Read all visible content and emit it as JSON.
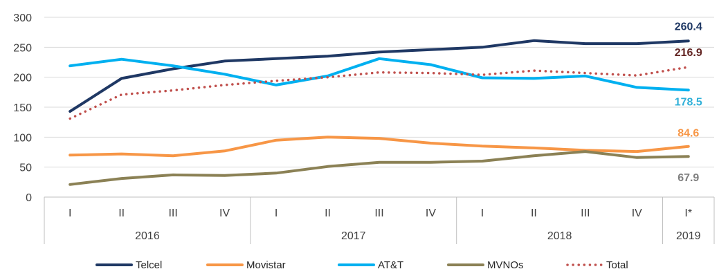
{
  "chart_data": {
    "type": "line",
    "categories": [
      "I",
      "II",
      "III",
      "IV",
      "I",
      "II",
      "III",
      "IV",
      "I",
      "II",
      "III",
      "IV",
      "I*"
    ],
    "groups": [
      {
        "label": "2016",
        "count": 4
      },
      {
        "label": "2017",
        "count": 4
      },
      {
        "label": "2018",
        "count": 4
      },
      {
        "label": "2019",
        "count": 1
      }
    ],
    "ylim": [
      0,
      300
    ],
    "yticks": [
      0,
      50,
      100,
      150,
      200,
      250,
      300
    ],
    "grid": true,
    "legend_position": "bottom",
    "series": [
      {
        "name": "Telcel",
        "color": "#1f3864",
        "style": "solid",
        "values": [
          143,
          198,
          214,
          227,
          231,
          235,
          242,
          246,
          250,
          261,
          256,
          256,
          260.4
        ],
        "end_label": "260.4",
        "label_color": "#1f3864"
      },
      {
        "name": "Movistar",
        "color": "#f79646",
        "style": "solid",
        "values": [
          70,
          72,
          69,
          77,
          95,
          100,
          98,
          90,
          85,
          82,
          78,
          76,
          84.6
        ],
        "end_label": "84.6",
        "label_color": "#f79646"
      },
      {
        "name": "AT&T",
        "color": "#00b0f0",
        "style": "solid",
        "values": [
          219,
          230,
          219,
          205,
          187,
          202,
          231,
          221,
          199,
          198,
          202,
          183,
          178.5
        ],
        "end_label": "178.5",
        "label_color": "#31b0d8"
      },
      {
        "name": "MVNOs",
        "color": "#8b8155",
        "style": "solid",
        "values": [
          21,
          31,
          37,
          36,
          40,
          51,
          58,
          58,
          60,
          69,
          76,
          66,
          67.9
        ],
        "end_label": "67.9",
        "label_color": "#7f7f7f"
      },
      {
        "name": "Total",
        "color": "#c0504d",
        "style": "dotted",
        "values": [
          131,
          171,
          178,
          187,
          194,
          200,
          208,
          207,
          204,
          211,
          207,
          203,
          216.9
        ],
        "end_label": "216.9",
        "label_color": "#632523"
      }
    ]
  }
}
